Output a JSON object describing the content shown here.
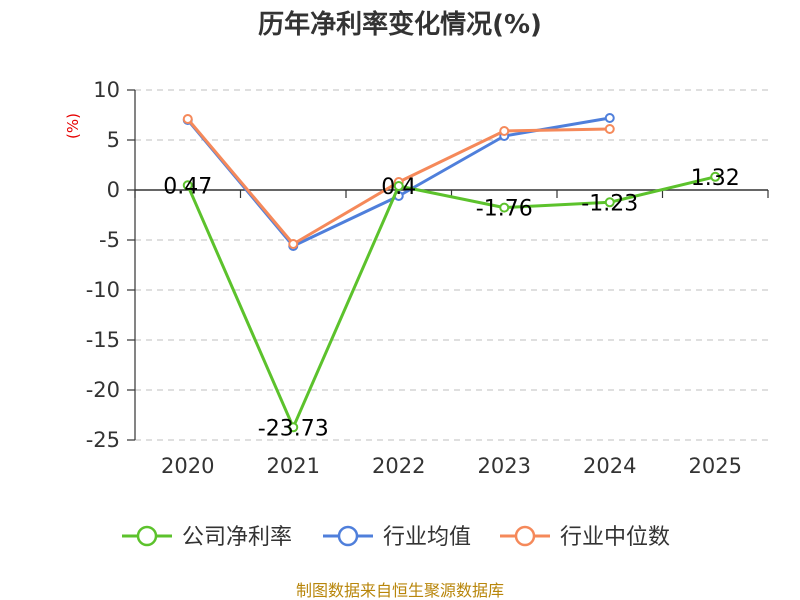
{
  "chart_data": {
    "type": "line",
    "title": "历年净利率变化情况(%)",
    "ylabel": "(%)",
    "categories": [
      "2020",
      "2021",
      "2022",
      "2023",
      "2024",
      "2025"
    ],
    "ylim": [
      -25,
      10
    ],
    "yticks": [
      10,
      5,
      0,
      -5,
      -10,
      -15,
      -20,
      -25
    ],
    "grid": true,
    "legend_position": "bottom",
    "series": [
      {
        "name": "公司净利率",
        "color": "#5cc22c",
        "values": [
          0.47,
          -23.73,
          0.4,
          -1.76,
          -1.23,
          1.32
        ],
        "labels": [
          "0.47",
          "-23.73",
          "0.4",
          "-1.76",
          "-1.23",
          "1.32"
        ]
      },
      {
        "name": "行业均值",
        "color": "#4f7fdb",
        "values": [
          7.0,
          -5.6,
          -0.6,
          5.4,
          7.2,
          null
        ]
      },
      {
        "name": "行业中位数",
        "color": "#f5895a",
        "values": [
          7.1,
          -5.4,
          0.8,
          5.9,
          6.1,
          null
        ]
      }
    ]
  },
  "source": "制图数据来自恒生聚源数据库"
}
